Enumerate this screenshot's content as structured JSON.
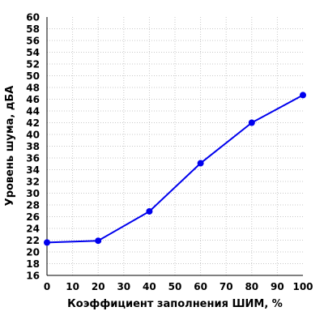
{
  "chart_data": {
    "type": "line",
    "title": "",
    "xlabel": "Коэффициент заполнения ШИМ, %",
    "ylabel": "Уровень шума, дБА",
    "xlim": [
      0,
      100
    ],
    "ylim": [
      16,
      60
    ],
    "xticks": [
      0,
      10,
      20,
      30,
      40,
      50,
      60,
      70,
      80,
      90,
      100
    ],
    "yticks": [
      16,
      18,
      20,
      22,
      24,
      26,
      28,
      30,
      32,
      34,
      36,
      38,
      40,
      42,
      44,
      46,
      48,
      50,
      52,
      54,
      56,
      58,
      60
    ],
    "grid": true,
    "legend": "none",
    "series": [
      {
        "color": "#0000ee",
        "x": [
          0,
          20,
          40,
          60,
          80,
          100
        ],
        "y": [
          21.6,
          21.9,
          26.9,
          35.1,
          42.0,
          46.7
        ]
      }
    ]
  }
}
